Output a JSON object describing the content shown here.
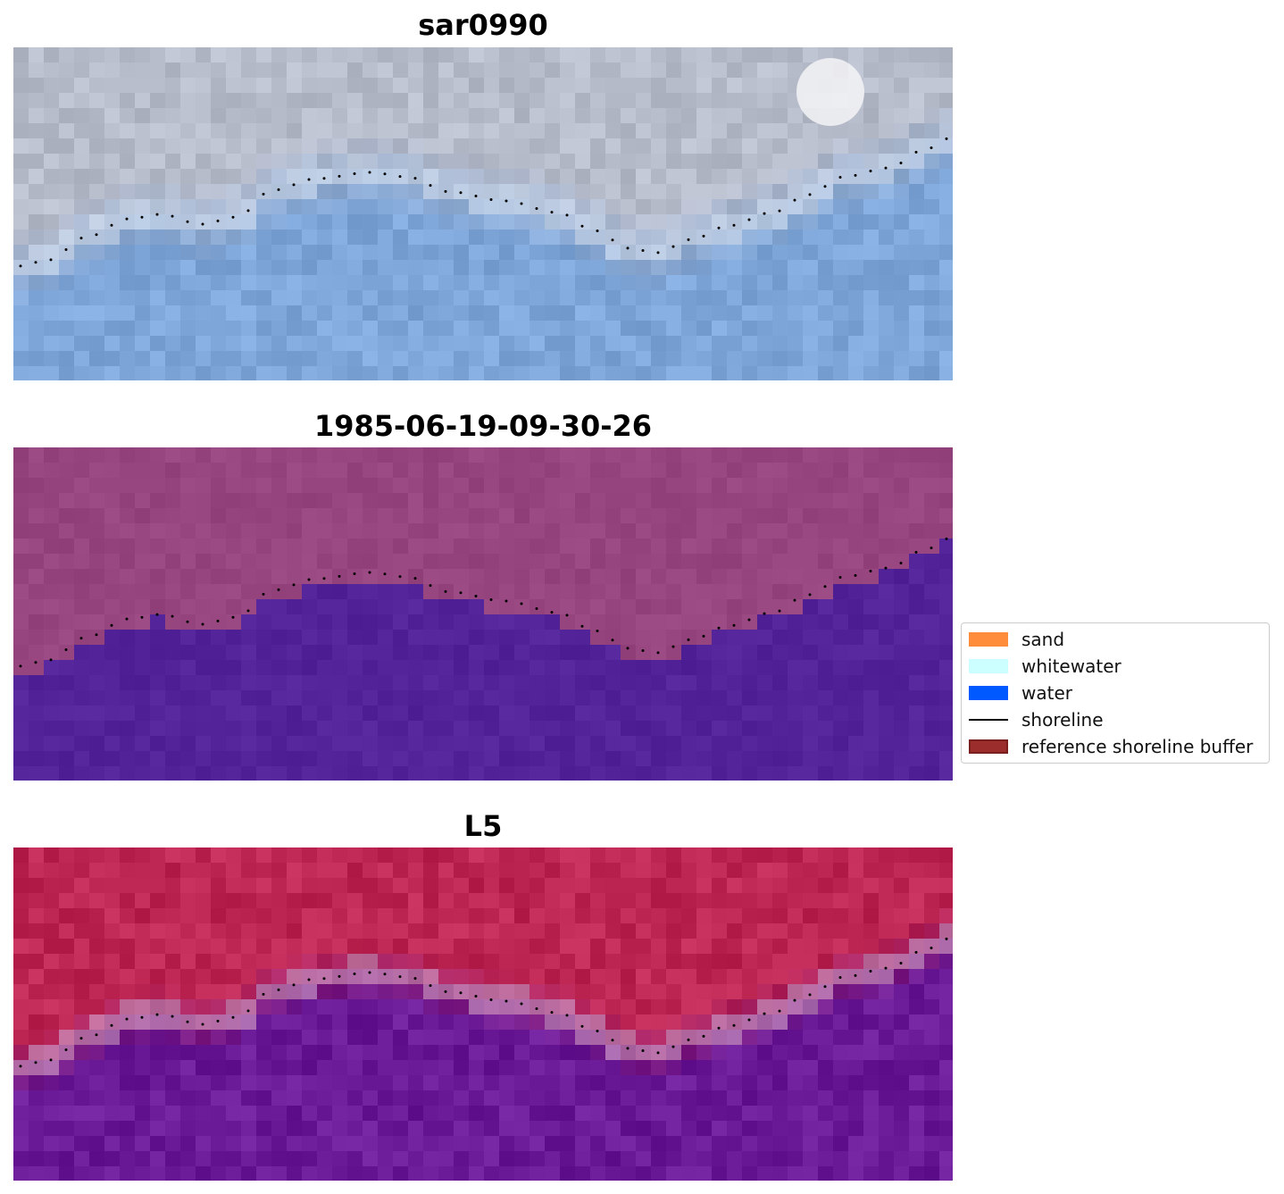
{
  "panels": [
    {
      "id": "rgb",
      "title": "sar0990"
    },
    {
      "id": "classified",
      "title": "1985-06-19-09-30-26"
    },
    {
      "id": "mndwi",
      "title": "L5"
    }
  ],
  "legend": {
    "items": [
      {
        "label": "sand",
        "color": "#ff8c3a",
        "kind": "patch"
      },
      {
        "label": "whitewater",
        "color": "#ccffff",
        "kind": "patch"
      },
      {
        "label": "water",
        "color": "#0059ff",
        "kind": "patch"
      },
      {
        "label": "shoreline",
        "color": "#000000",
        "kind": "line"
      },
      {
        "label": "reference shoreline buffer",
        "color": "#9b2d2d",
        "kind": "patch"
      }
    ]
  },
  "colors": {
    "land_rgb": "#b7bccb",
    "water_rgb": "#7fa6d8",
    "land_class": "#97457f",
    "water_class": "#53239a",
    "land_index": "#bd2552",
    "water_index": "#6a1a96",
    "shoreline": "#000000"
  }
}
